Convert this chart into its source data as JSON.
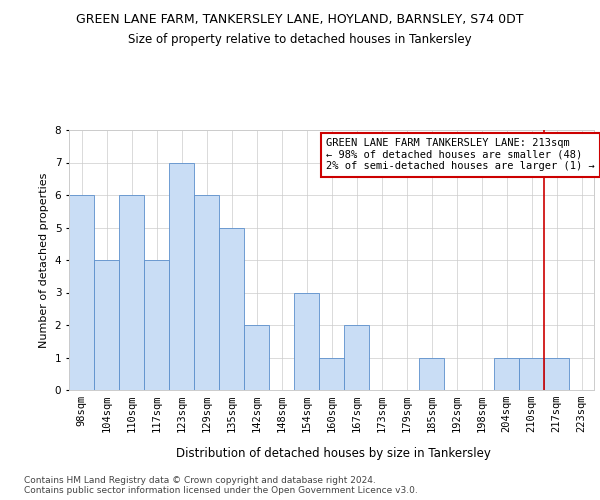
{
  "title": "GREEN LANE FARM, TANKERSLEY LANE, HOYLAND, BARNSLEY, S74 0DT",
  "subtitle": "Size of property relative to detached houses in Tankersley",
  "xlabel": "Distribution of detached houses by size in Tankersley",
  "ylabel": "Number of detached properties",
  "bar_labels": [
    "98sqm",
    "104sqm",
    "110sqm",
    "117sqm",
    "123sqm",
    "129sqm",
    "135sqm",
    "142sqm",
    "148sqm",
    "154sqm",
    "160sqm",
    "167sqm",
    "173sqm",
    "179sqm",
    "185sqm",
    "192sqm",
    "198sqm",
    "204sqm",
    "210sqm",
    "217sqm",
    "223sqm"
  ],
  "bar_values": [
    6,
    4,
    6,
    4,
    7,
    6,
    5,
    2,
    0,
    3,
    1,
    2,
    0,
    0,
    1,
    0,
    0,
    1,
    1,
    1,
    0
  ],
  "bar_color": "#c9ddf5",
  "bar_edgecolor": "#5b8fcc",
  "vline_x": 18.5,
  "vline_color": "#cc0000",
  "annotation_text": "GREEN LANE FARM TANKERSLEY LANE: 213sqm\n← 98% of detached houses are smaller (48)\n2% of semi-detached houses are larger (1) →",
  "annotation_box_color": "#ffffff",
  "annotation_box_edgecolor": "#cc0000",
  "ylim": [
    0,
    8
  ],
  "yticks": [
    0,
    1,
    2,
    3,
    4,
    5,
    6,
    7,
    8
  ],
  "grid_color": "#cccccc",
  "background_color": "#ffffff",
  "footer_text": "Contains HM Land Registry data © Crown copyright and database right 2024.\nContains public sector information licensed under the Open Government Licence v3.0.",
  "title_fontsize": 9,
  "subtitle_fontsize": 8.5,
  "xlabel_fontsize": 8.5,
  "ylabel_fontsize": 8,
  "tick_fontsize": 7.5,
  "footer_fontsize": 6.5,
  "annotation_fontsize": 7.5
}
